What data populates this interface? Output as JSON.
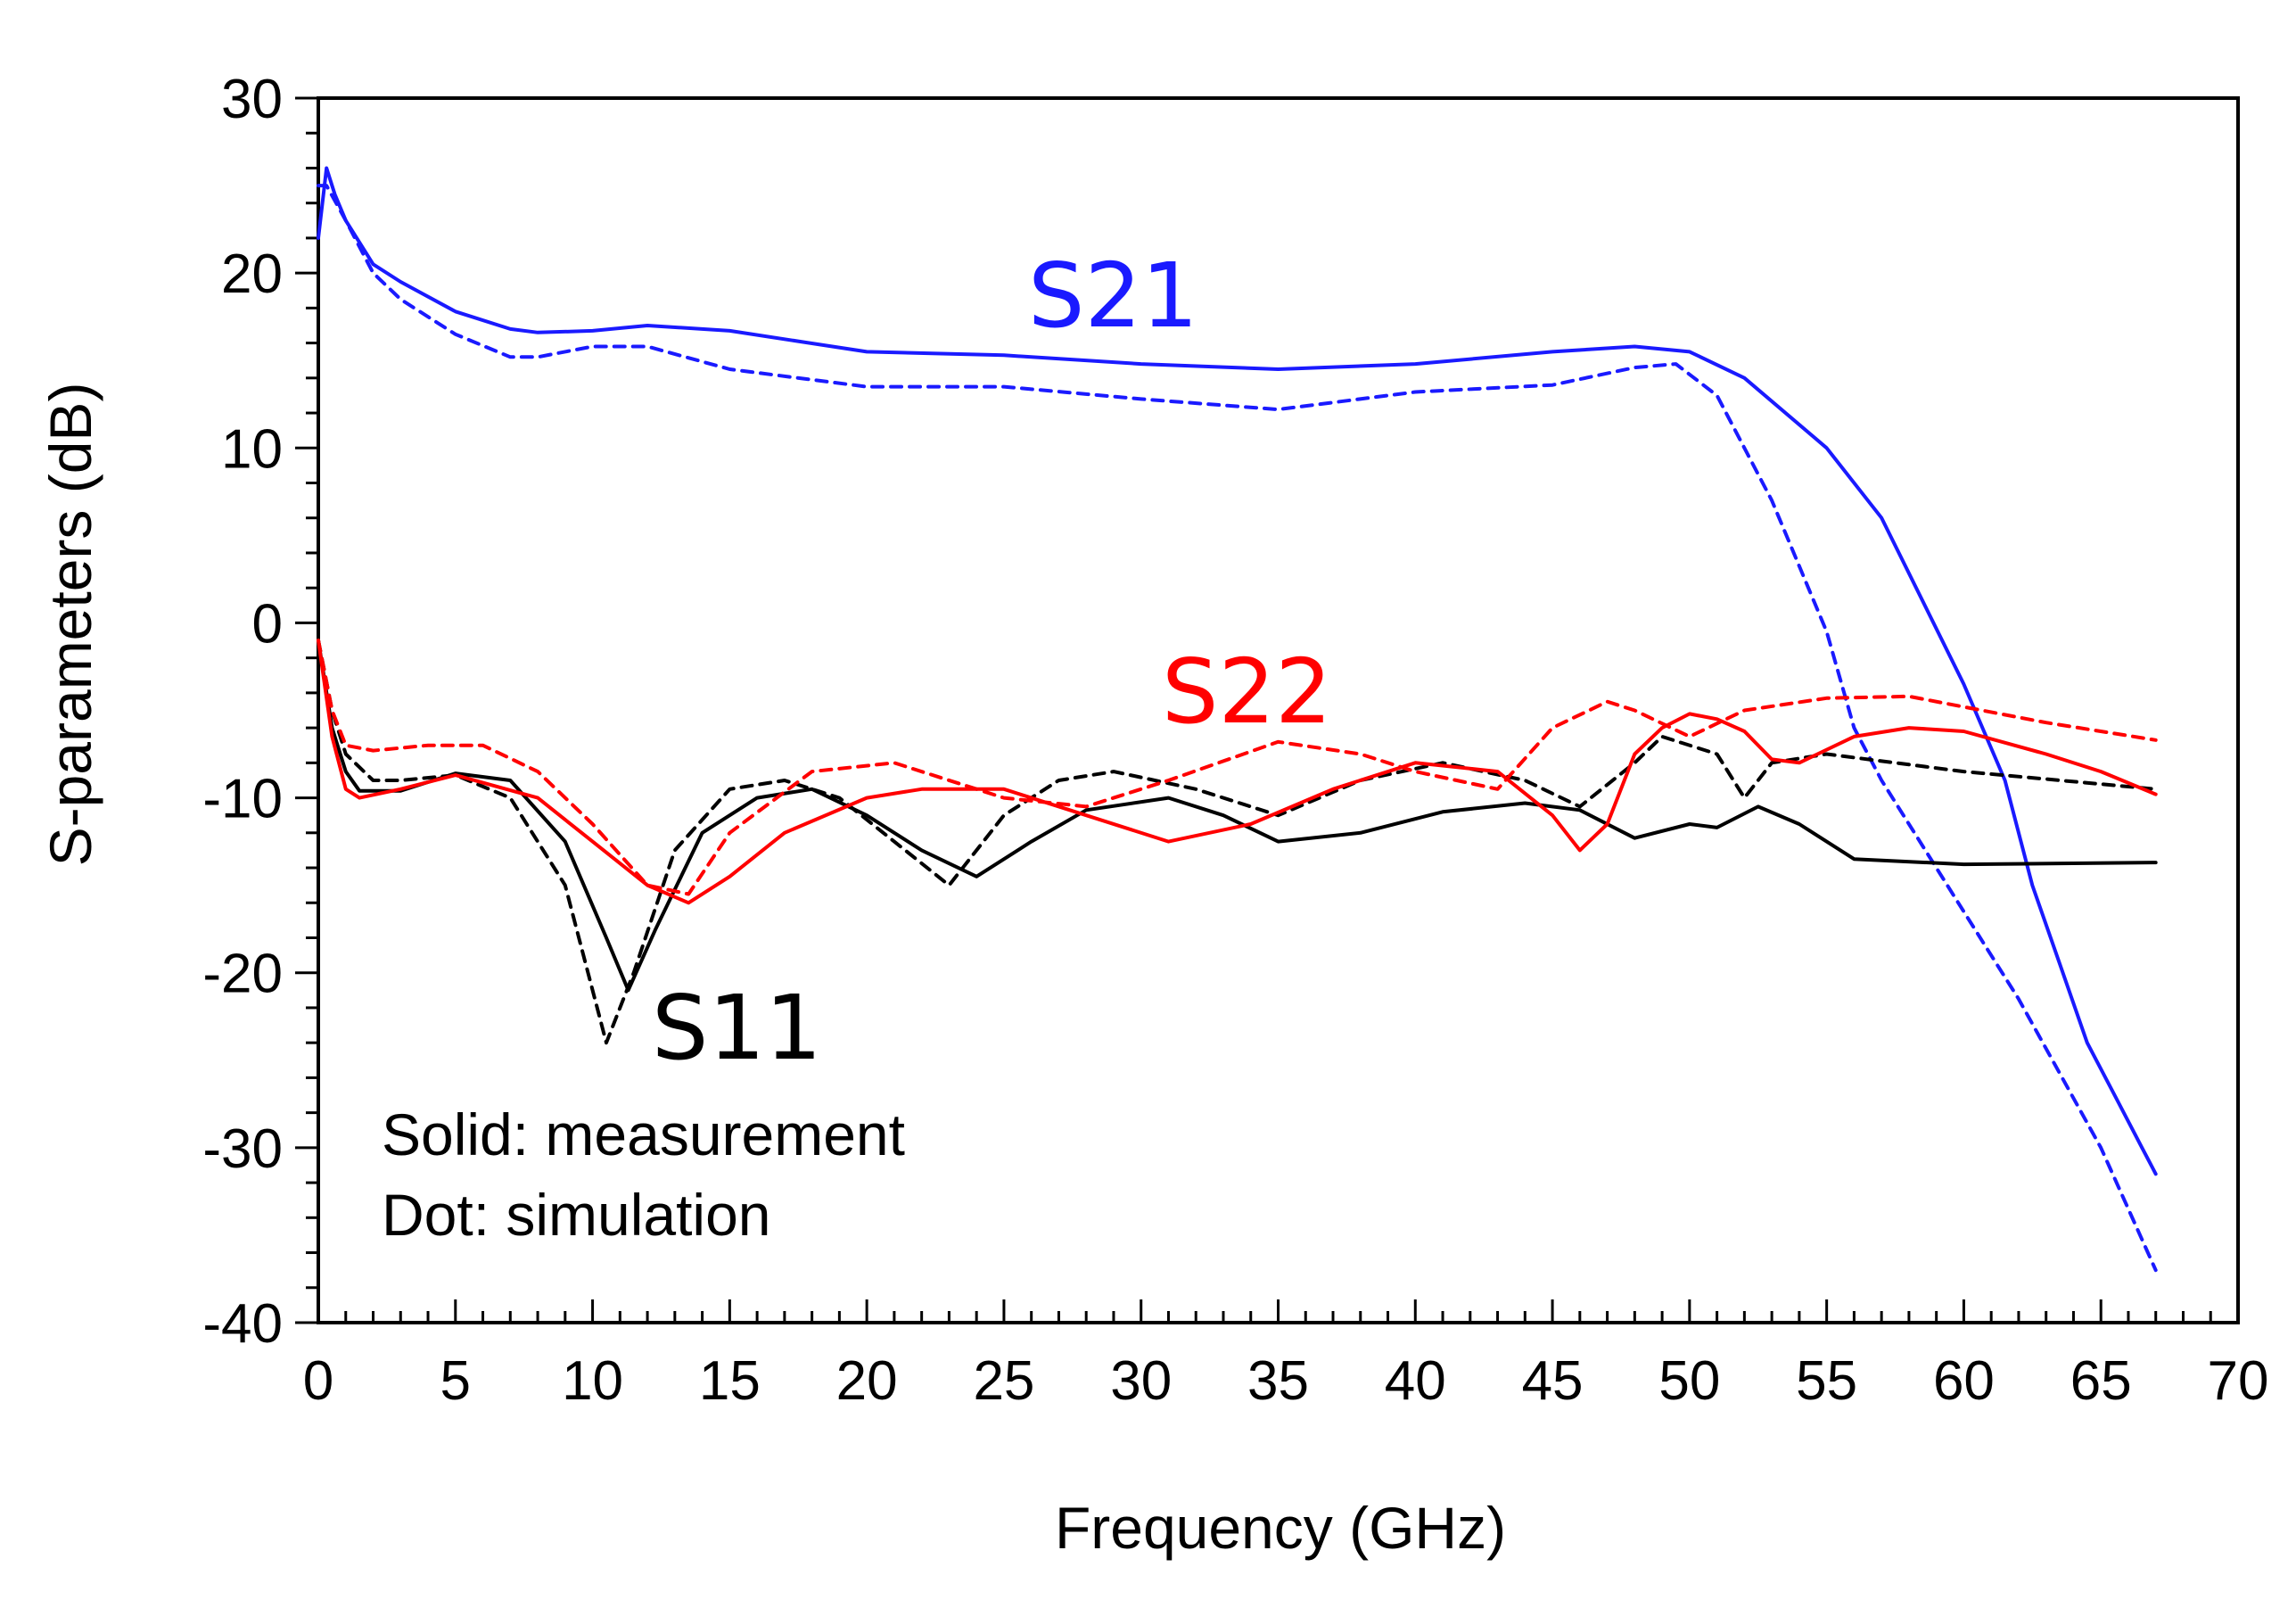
{
  "chart_data": {
    "type": "line",
    "xlabel": "Frequency (GHz)",
    "ylabel": "S-parameters (dB)",
    "xlim": [
      0,
      70
    ],
    "ylim": [
      -40,
      30
    ],
    "xticks": [
      0,
      5,
      10,
      15,
      20,
      25,
      30,
      35,
      40,
      45,
      50,
      55,
      60,
      65,
      70
    ],
    "yticks": [
      30,
      20,
      10,
      0,
      -10,
      -20,
      -30,
      -40
    ],
    "grid": false,
    "annotations": {
      "s21": "S21",
      "s22": "S22",
      "s11": "S11",
      "solid_note": "Solid: measurement",
      "dot_note": "Dot: simulation"
    },
    "series": [
      {
        "name": "S21 measurement",
        "color": "#1a1aff",
        "style": "solid",
        "x": [
          0,
          0.3,
          0.6,
          1,
          2,
          3,
          5,
          7,
          8,
          10,
          12,
          15,
          20,
          25,
          30,
          35,
          40,
          45,
          48,
          50,
          52,
          55,
          57,
          60,
          61.5,
          62.5,
          63.5,
          64.5,
          65.5,
          66.5,
          67
        ],
        "y": [
          22,
          26,
          24.5,
          23,
          20.5,
          19.5,
          17.8,
          16.8,
          16.6,
          16.7,
          17,
          16.7,
          15.5,
          15.3,
          14.8,
          14.5,
          14.8,
          15.5,
          15.8,
          15.5,
          14,
          10,
          6,
          -3.5,
          -9,
          -15,
          -19.5,
          -24,
          -27,
          -30,
          -31.5
        ]
      },
      {
        "name": "S21 simulation",
        "color": "#1a1aff",
        "style": "dashed",
        "x": [
          0,
          0.3,
          1,
          2,
          3,
          5,
          7,
          8,
          10,
          12,
          15,
          20,
          25,
          30,
          35,
          40,
          45,
          48,
          49.5,
          51,
          53,
          55,
          56,
          57,
          60,
          62,
          65,
          67
        ],
        "y": [
          25,
          25,
          23,
          20,
          18.5,
          16.5,
          15.2,
          15.2,
          15.8,
          15.8,
          14.5,
          13.5,
          13.5,
          12.8,
          12.2,
          13.2,
          13.6,
          14.6,
          14.8,
          13,
          7,
          -0.5,
          -6,
          -9,
          -16.5,
          -21.5,
          -30,
          -37
        ]
      },
      {
        "name": "S11 measurement",
        "color": "#000000",
        "style": "solid",
        "x": [
          0,
          0.5,
          1,
          1.5,
          3,
          5,
          7,
          9,
          10.5,
          11.3,
          12.3,
          14,
          16,
          18,
          20,
          22,
          24,
          26,
          28,
          31,
          33,
          35,
          38,
          41,
          44,
          46,
          48,
          50,
          51,
          52.5,
          54,
          56,
          60,
          67
        ],
        "y": [
          -1,
          -6,
          -8.5,
          -9.6,
          -9.6,
          -8.6,
          -9,
          -12.5,
          -18,
          -21,
          -17.5,
          -12,
          -10,
          -9.5,
          -11,
          -13,
          -14.5,
          -12.5,
          -10.7,
          -10,
          -11,
          -12.5,
          -12,
          -10.8,
          -10.3,
          -10.7,
          -12.3,
          -11.5,
          -11.7,
          -10.5,
          -11.5,
          -13.5,
          -13.8,
          -13.7
        ]
      },
      {
        "name": "S11 simulation",
        "color": "#000000",
        "style": "dashed",
        "x": [
          0,
          0.5,
          1,
          2,
          3,
          5,
          7,
          9,
          10.5,
          11.5,
          13,
          15,
          17,
          19,
          21,
          23,
          25,
          27,
          29,
          32,
          35,
          38,
          41,
          44,
          46,
          48,
          49,
          51,
          52,
          53,
          55,
          60,
          67
        ],
        "y": [
          -1,
          -5,
          -7.5,
          -9,
          -9,
          -8.7,
          -10,
          -15,
          -24,
          -20,
          -13,
          -9.5,
          -9,
          -10,
          -12.5,
          -15,
          -11,
          -9,
          -8.5,
          -9.5,
          -11,
          -9,
          -8,
          -9,
          -10.5,
          -8,
          -6.5,
          -7.5,
          -10,
          -8,
          -7.5,
          -8.5,
          -9.5
        ]
      },
      {
        "name": "S22 measurement",
        "color": "#ff0000",
        "style": "solid",
        "x": [
          0,
          0.5,
          1,
          1.5,
          3,
          5,
          8,
          10,
          12,
          13.5,
          15,
          17,
          20,
          22,
          25,
          28,
          31,
          34,
          37,
          40,
          43,
          45,
          46,
          47,
          48,
          49,
          50,
          51,
          52,
          53,
          54,
          56,
          58,
          60,
          63,
          65,
          67
        ],
        "y": [
          -1,
          -6.5,
          -9.5,
          -10,
          -9.5,
          -8.7,
          -10,
          -12.5,
          -15,
          -16,
          -14.5,
          -12,
          -10,
          -9.5,
          -9.5,
          -11,
          -12.5,
          -11.5,
          -9.5,
          -8,
          -8.5,
          -11,
          -13,
          -11.5,
          -7.5,
          -6,
          -5.2,
          -5.5,
          -6.2,
          -7.8,
          -8,
          -6.5,
          -6,
          -6.2,
          -7.5,
          -8.5,
          -9.8
        ]
      },
      {
        "name": "S22 simulation",
        "color": "#ff0000",
        "style": "dashed",
        "x": [
          0,
          0.5,
          1,
          2,
          4,
          6,
          8,
          10,
          12,
          13.5,
          15,
          18,
          21,
          25,
          28,
          31,
          35,
          38,
          40,
          43,
          45,
          47,
          48,
          50,
          52,
          55,
          58,
          60,
          63,
          67
        ],
        "y": [
          -1,
          -5,
          -7,
          -7.3,
          -7,
          -7,
          -8.5,
          -11.5,
          -15,
          -15.5,
          -12,
          -8.5,
          -8,
          -10,
          -10.5,
          -9,
          -6.8,
          -7.5,
          -8.5,
          -9.5,
          -6,
          -4.5,
          -5,
          -6.5,
          -5,
          -4.3,
          -4.2,
          -4.8,
          -5.7,
          -6.7
        ]
      }
    ]
  }
}
